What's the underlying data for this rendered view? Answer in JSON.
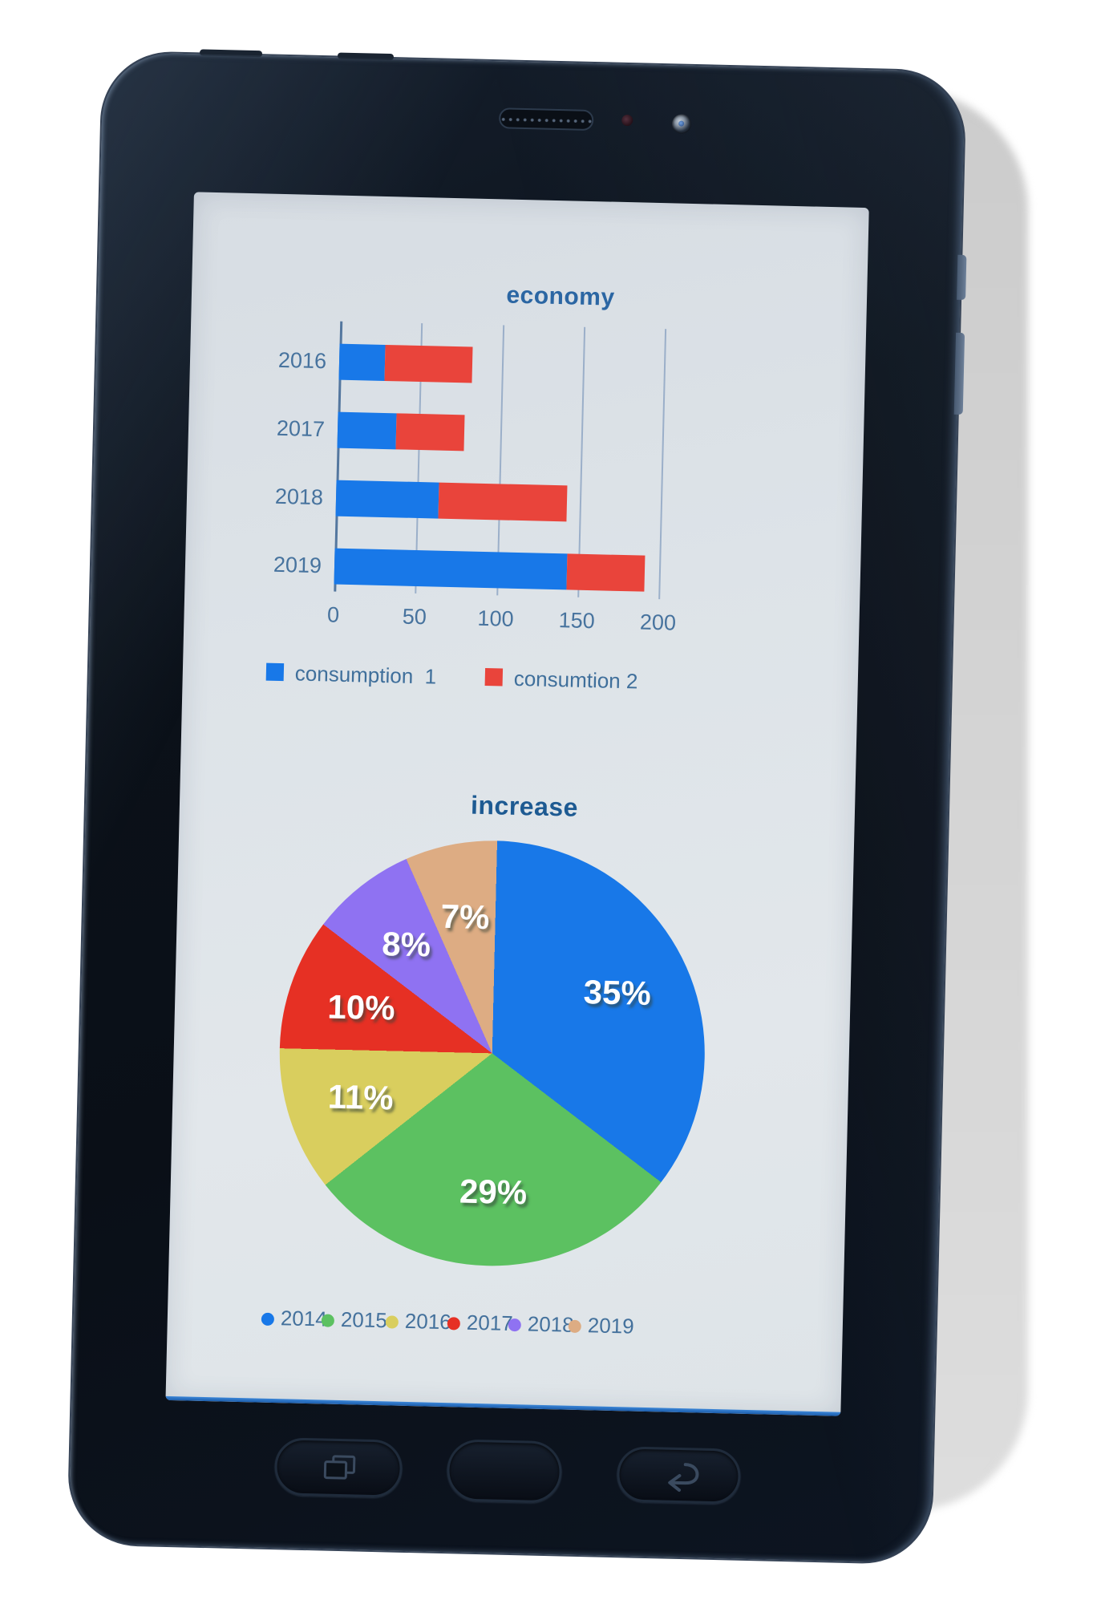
{
  "device": {
    "type": "tablet",
    "hardware_icons": [
      "speaker-grille-icon",
      "light-sensor-icon",
      "front-camera-icon",
      "recent-apps-icon",
      "home-button",
      "back-arrow-icon",
      "power-button",
      "volume-rocker"
    ]
  },
  "colors": {
    "bar_series": [
      "#1878e8",
      "#e9443b"
    ],
    "pie_slices": [
      "#1878e8",
      "#5cc161",
      "#d9ce5e",
      "#e63024",
      "#8f72f2",
      "#ddac83"
    ],
    "bar_title_color": "#2b66a3",
    "pie_title_color": "#1d5a92",
    "axis_text_color": "#47739e",
    "screen_glow_color": "#2f7fd6"
  },
  "chart_data": [
    {
      "type": "bar",
      "orientation": "horizontal",
      "stacked": true,
      "title": "economy",
      "categories": [
        "2016",
        "2017",
        "2018",
        "2019"
      ],
      "series": [
        {
          "name": "consumption  1",
          "values": [
            28,
            36,
            63,
            143
          ]
        },
        {
          "name": "consumtion 2",
          "values": [
            54,
            42,
            79,
            48
          ]
        }
      ],
      "xlim": [
        0,
        200
      ],
      "x_ticks": [
        "0",
        "50",
        "100",
        "150",
        "200"
      ],
      "grid": true,
      "legend_position": "bottom"
    },
    {
      "type": "pie",
      "title": "increase",
      "categories": [
        "2014",
        "2015",
        "2016",
        "2017",
        "2018",
        "2019"
      ],
      "values": [
        35,
        29,
        11,
        10,
        8,
        7
      ],
      "slice_labels": [
        "35%",
        "29%",
        "11%",
        "10%",
        "8%",
        "7%"
      ],
      "start_angle": 0,
      "direction": "clockwise",
      "legend_position": "bottom"
    }
  ]
}
